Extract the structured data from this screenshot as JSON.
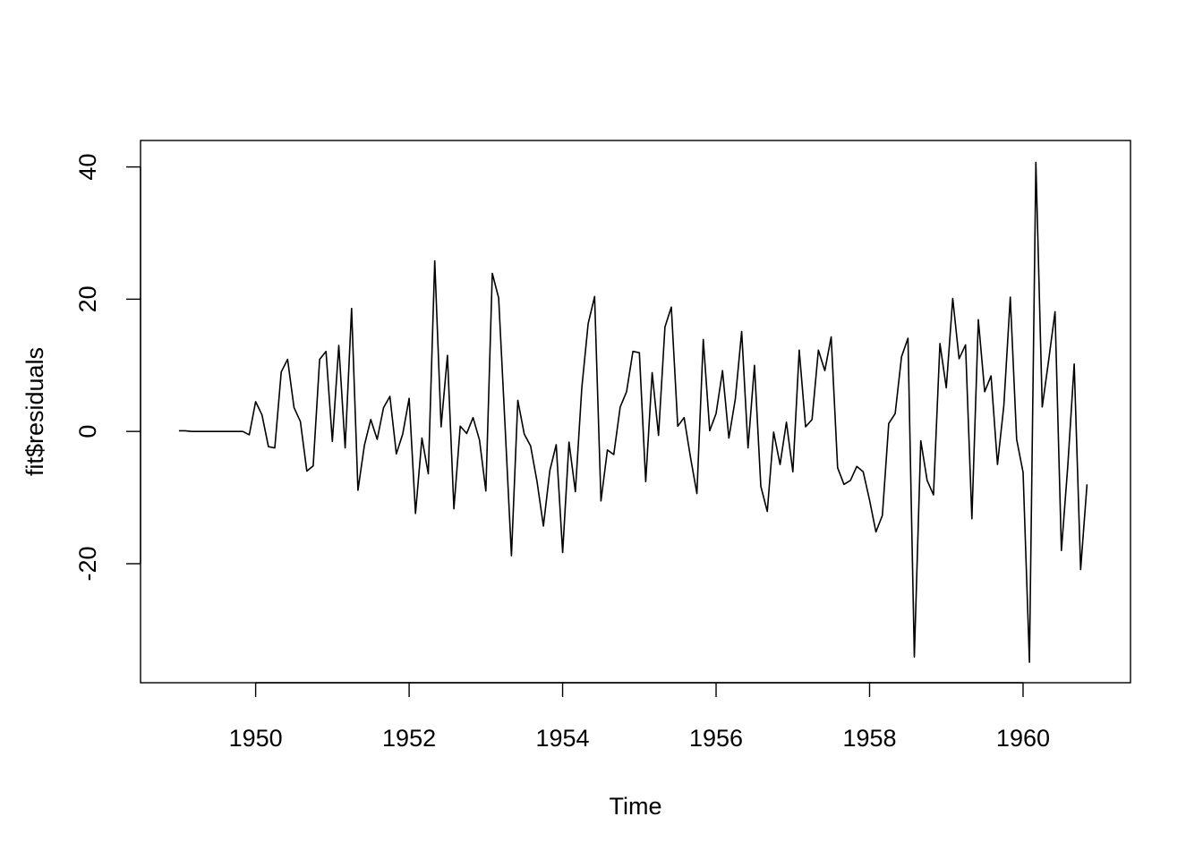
{
  "chart_data": {
    "type": "line",
    "title": "",
    "xlabel": "Time",
    "ylabel": "fit$residuals",
    "xlim": [
      1948.5,
      1961.4
    ],
    "ylim": [
      -38,
      44
    ],
    "x_ticks": [
      1950,
      1952,
      1954,
      1956,
      1958,
      1960
    ],
    "x_tick_labels": [
      "1950",
      "1952",
      "1954",
      "1956",
      "1958",
      "1960"
    ],
    "y_ticks": [
      -20,
      0,
      20,
      40
    ],
    "y_tick_labels": [
      "-20",
      "0",
      "20",
      "40"
    ],
    "x_start": 1949.0,
    "x_step": 0.0833333,
    "series": [
      {
        "values": [
          0.1,
          0.1,
          0.0,
          0.0,
          0.0,
          0.0,
          0.0,
          0.0,
          0.0,
          0.0,
          0.0,
          -0.5,
          4.5,
          2.5,
          -2.3,
          -2.5,
          9.0,
          10.9,
          3.6,
          1.5,
          -6.0,
          -5.2,
          10.9,
          12.1,
          -1.5,
          13.0,
          -2.5,
          18.6,
          -8.9,
          -2.1,
          1.8,
          -1.2,
          3.6,
          5.3,
          -3.4,
          -0.4,
          5.0,
          -12.4,
          -1.0,
          -6.4,
          25.8,
          0.7,
          11.5,
          -11.7,
          0.8,
          -0.3,
          2.1,
          -1.3,
          -9.0,
          23.9,
          20.2,
          1.0,
          -18.8,
          4.7,
          -0.4,
          -2.2,
          -7.6,
          -14.3,
          -5.9,
          -2.0,
          -18.3,
          -1.6,
          -9.1,
          6.6,
          16.3,
          20.4,
          -10.5,
          -2.8,
          -3.5,
          3.7,
          6.0,
          12.1,
          11.9,
          -7.6,
          8.9,
          -0.6,
          15.8,
          18.8,
          0.8,
          2.1,
          -3.9,
          -9.4,
          13.9,
          0.1,
          2.7,
          9.2,
          -1.0,
          4.9,
          15.1,
          -2.5,
          10.0,
          -8.3,
          -12.1,
          -0.1,
          -5.0,
          1.4,
          -6.1,
          12.3,
          0.7,
          1.8,
          12.3,
          9.2,
          14.3,
          -5.5,
          -8.0,
          -7.4,
          -5.3,
          -6.1,
          -10.4,
          -15.2,
          -12.7,
          1.2,
          2.7,
          11.3,
          14.1,
          -34.1,
          -1.4,
          -7.4,
          -9.6,
          13.3,
          6.6,
          20.1,
          11.0,
          13.1,
          -13.2,
          16.9,
          6.0,
          8.4,
          -5.0,
          3.9,
          20.3,
          -1.2,
          -6.2,
          -34.9,
          40.7,
          3.7,
          10.7,
          18.1,
          -18.0,
          -5.1,
          10.2,
          -20.9,
          -8.0
        ]
      }
    ],
    "grid": false,
    "legend": "none"
  }
}
